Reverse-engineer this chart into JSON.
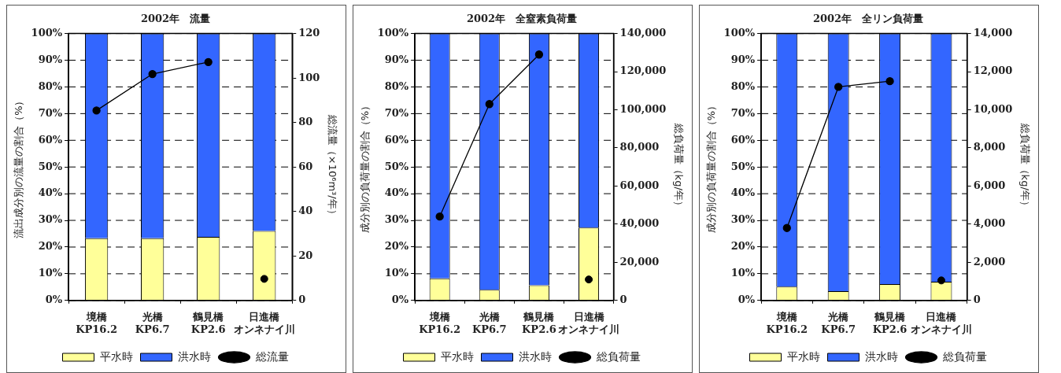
{
  "chart_data": [
    {
      "type": "bar",
      "title": "2002年　流量",
      "categories": [
        "境橋 KP16.2",
        "光橋 KP6.7",
        "鶴見橋 KP2.6",
        "日進橋オンネナイ川"
      ],
      "stacked": true,
      "ylabel": "流出成分別の流量の割合（%）",
      "y2label": "総流量（×10⁶m³/年）",
      "ylim": [
        0,
        100
      ],
      "yticks": [
        {
          "value": 0,
          "label": "0%"
        },
        {
          "value": 10,
          "label": "10%"
        },
        {
          "value": 20,
          "label": "20%"
        },
        {
          "value": 30,
          "label": "30%"
        },
        {
          "value": 40,
          "label": "40%"
        },
        {
          "value": 50,
          "label": "50%"
        },
        {
          "value": 60,
          "label": "60%"
        },
        {
          "value": 70,
          "label": "70%"
        },
        {
          "value": 80,
          "label": "80%"
        },
        {
          "value": 90,
          "label": "90%"
        },
        {
          "value": 100,
          "label": "100%"
        }
      ],
      "y2lim": [
        0,
        120
      ],
      "y2ticks": [
        0,
        20,
        40,
        60,
        80,
        100,
        120
      ],
      "grid": "y",
      "legend": "bottom",
      "series": [
        {
          "name": "平水時",
          "color": "#ffff99",
          "values": [
            23.3,
            23.3,
            23.8,
            26
          ]
        },
        {
          "name": "洪水時",
          "color": "#3366ff",
          "values": [
            76.7,
            76.7,
            76.2,
            74
          ]
        },
        {
          "name": "総流量",
          "type": "line",
          "axis": "y2",
          "marker": "circle",
          "color": "#000000",
          "values": [
            85.4,
            101.8,
            107.2,
            null
          ]
        },
        {
          "type": "scatter",
          "axis": "y2",
          "marker": "circle",
          "color": "#000000",
          "x": [
            "日進橋オンネナイ川"
          ],
          "values": [
            9.7
          ]
        }
      ]
    },
    {
      "type": "bar",
      "title": "2002年　全窒素負荷量",
      "categories": [
        "境橋 KP16.2",
        "光橋 KP6.7",
        "鶴見橋 KP2.6",
        "日進橋オンネナイ川"
      ],
      "stacked": true,
      "ylabel": "成分別の負荷量の割合（%）",
      "y2label": "総負荷量（kg/年）",
      "ylim": [
        0,
        100
      ],
      "yticks": [
        {
          "value": 0,
          "label": "0%"
        },
        {
          "value": 10,
          "label": "10%"
        },
        {
          "value": 20,
          "label": "20%"
        },
        {
          "value": 30,
          "label": "30%"
        },
        {
          "value": 40,
          "label": "40%"
        },
        {
          "value": 50,
          "label": "50%"
        },
        {
          "value": 60,
          "label": "60%"
        },
        {
          "value": 70,
          "label": "70%"
        },
        {
          "value": 80,
          "label": "80%"
        },
        {
          "value": 90,
          "label": "90%"
        },
        {
          "value": 100,
          "label": "100%"
        }
      ],
      "y2lim": [
        0,
        140000
      ],
      "y2ticks": [
        0,
        {
          "value": 20000,
          "label": "20,000"
        },
        {
          "value": 40000,
          "label": "40,000"
        },
        {
          "value": 60000,
          "label": "60,000"
        },
        {
          "value": 80000,
          "label": "80,000"
        },
        {
          "value": 100000,
          "label": "100,000"
        },
        {
          "value": 120000,
          "label": "120,000"
        },
        {
          "value": 140000,
          "label": "140,000"
        }
      ],
      "grid": "y",
      "legend": "bottom",
      "series": [
        {
          "name": "平水時",
          "color": "#ffff99",
          "values": [
            8.3,
            4,
            5.7,
            27.3
          ]
        },
        {
          "name": "洪水時",
          "color": "#3366ff",
          "values": [
            91.7,
            96,
            94.3,
            72.7
          ]
        },
        {
          "name": "総負荷量",
          "type": "line",
          "axis": "y2",
          "marker": "circle",
          "color": "#000000",
          "values": [
            44000,
            103000,
            129000,
            null
          ]
        },
        {
          "type": "scatter",
          "axis": "y2",
          "marker": "circle",
          "color": "#000000",
          "x": [
            "日進橋オンネナイ川"
          ],
          "values": [
            11000
          ]
        }
      ]
    },
    {
      "type": "bar",
      "title": "2002年　全リン負荷量",
      "categories": [
        "境橋 KP16.2",
        "光橋 KP6.7",
        "鶴見橋 KP2.6",
        "日進橋オンネナイ川"
      ],
      "stacked": true,
      "ylabel": "成分別の負荷量の割合（%）",
      "y2label": "総負荷量（kg/年）",
      "ylim": [
        0,
        100
      ],
      "yticks": [
        {
          "value": 0,
          "label": "0%"
        },
        {
          "value": 10,
          "label": "10%"
        },
        {
          "value": 20,
          "label": "20%"
        },
        {
          "value": 30,
          "label": "30%"
        },
        {
          "value": 40,
          "label": "40%"
        },
        {
          "value": 50,
          "label": "50%"
        },
        {
          "value": 60,
          "label": "60%"
        },
        {
          "value": 70,
          "label": "70%"
        },
        {
          "value": 80,
          "label": "80%"
        },
        {
          "value": 90,
          "label": "90%"
        },
        {
          "value": 100,
          "label": "100%"
        }
      ],
      "y2lim": [
        0,
        14000
      ],
      "y2ticks": [
        0,
        {
          "value": 2000,
          "label": "2,000"
        },
        {
          "value": 4000,
          "label": "4,000"
        },
        {
          "value": 6000,
          "label": "6,000"
        },
        {
          "value": 8000,
          "label": "8,000"
        },
        {
          "value": 10000,
          "label": "10,000"
        },
        {
          "value": 12000,
          "label": "12,000"
        },
        {
          "value": 14000,
          "label": "14,000"
        }
      ],
      "grid": "y",
      "legend": "bottom",
      "series": [
        {
          "name": "平水時",
          "color": "#ffff99",
          "values": [
            5.2,
            3.5,
            6.1,
            7
          ]
        },
        {
          "name": "洪水時",
          "color": "#3366ff",
          "values": [
            94.8,
            96.5,
            93.9,
            93
          ]
        },
        {
          "name": "総負荷量",
          "type": "line",
          "axis": "y2",
          "marker": "circle",
          "color": "#000000",
          "values": [
            3800,
            11200,
            11500,
            null
          ]
        },
        {
          "type": "scatter",
          "axis": "y2",
          "marker": "circle",
          "color": "#000000",
          "x": [
            "日進橋オンネナイ川"
          ],
          "values": [
            1050
          ]
        }
      ]
    }
  ]
}
